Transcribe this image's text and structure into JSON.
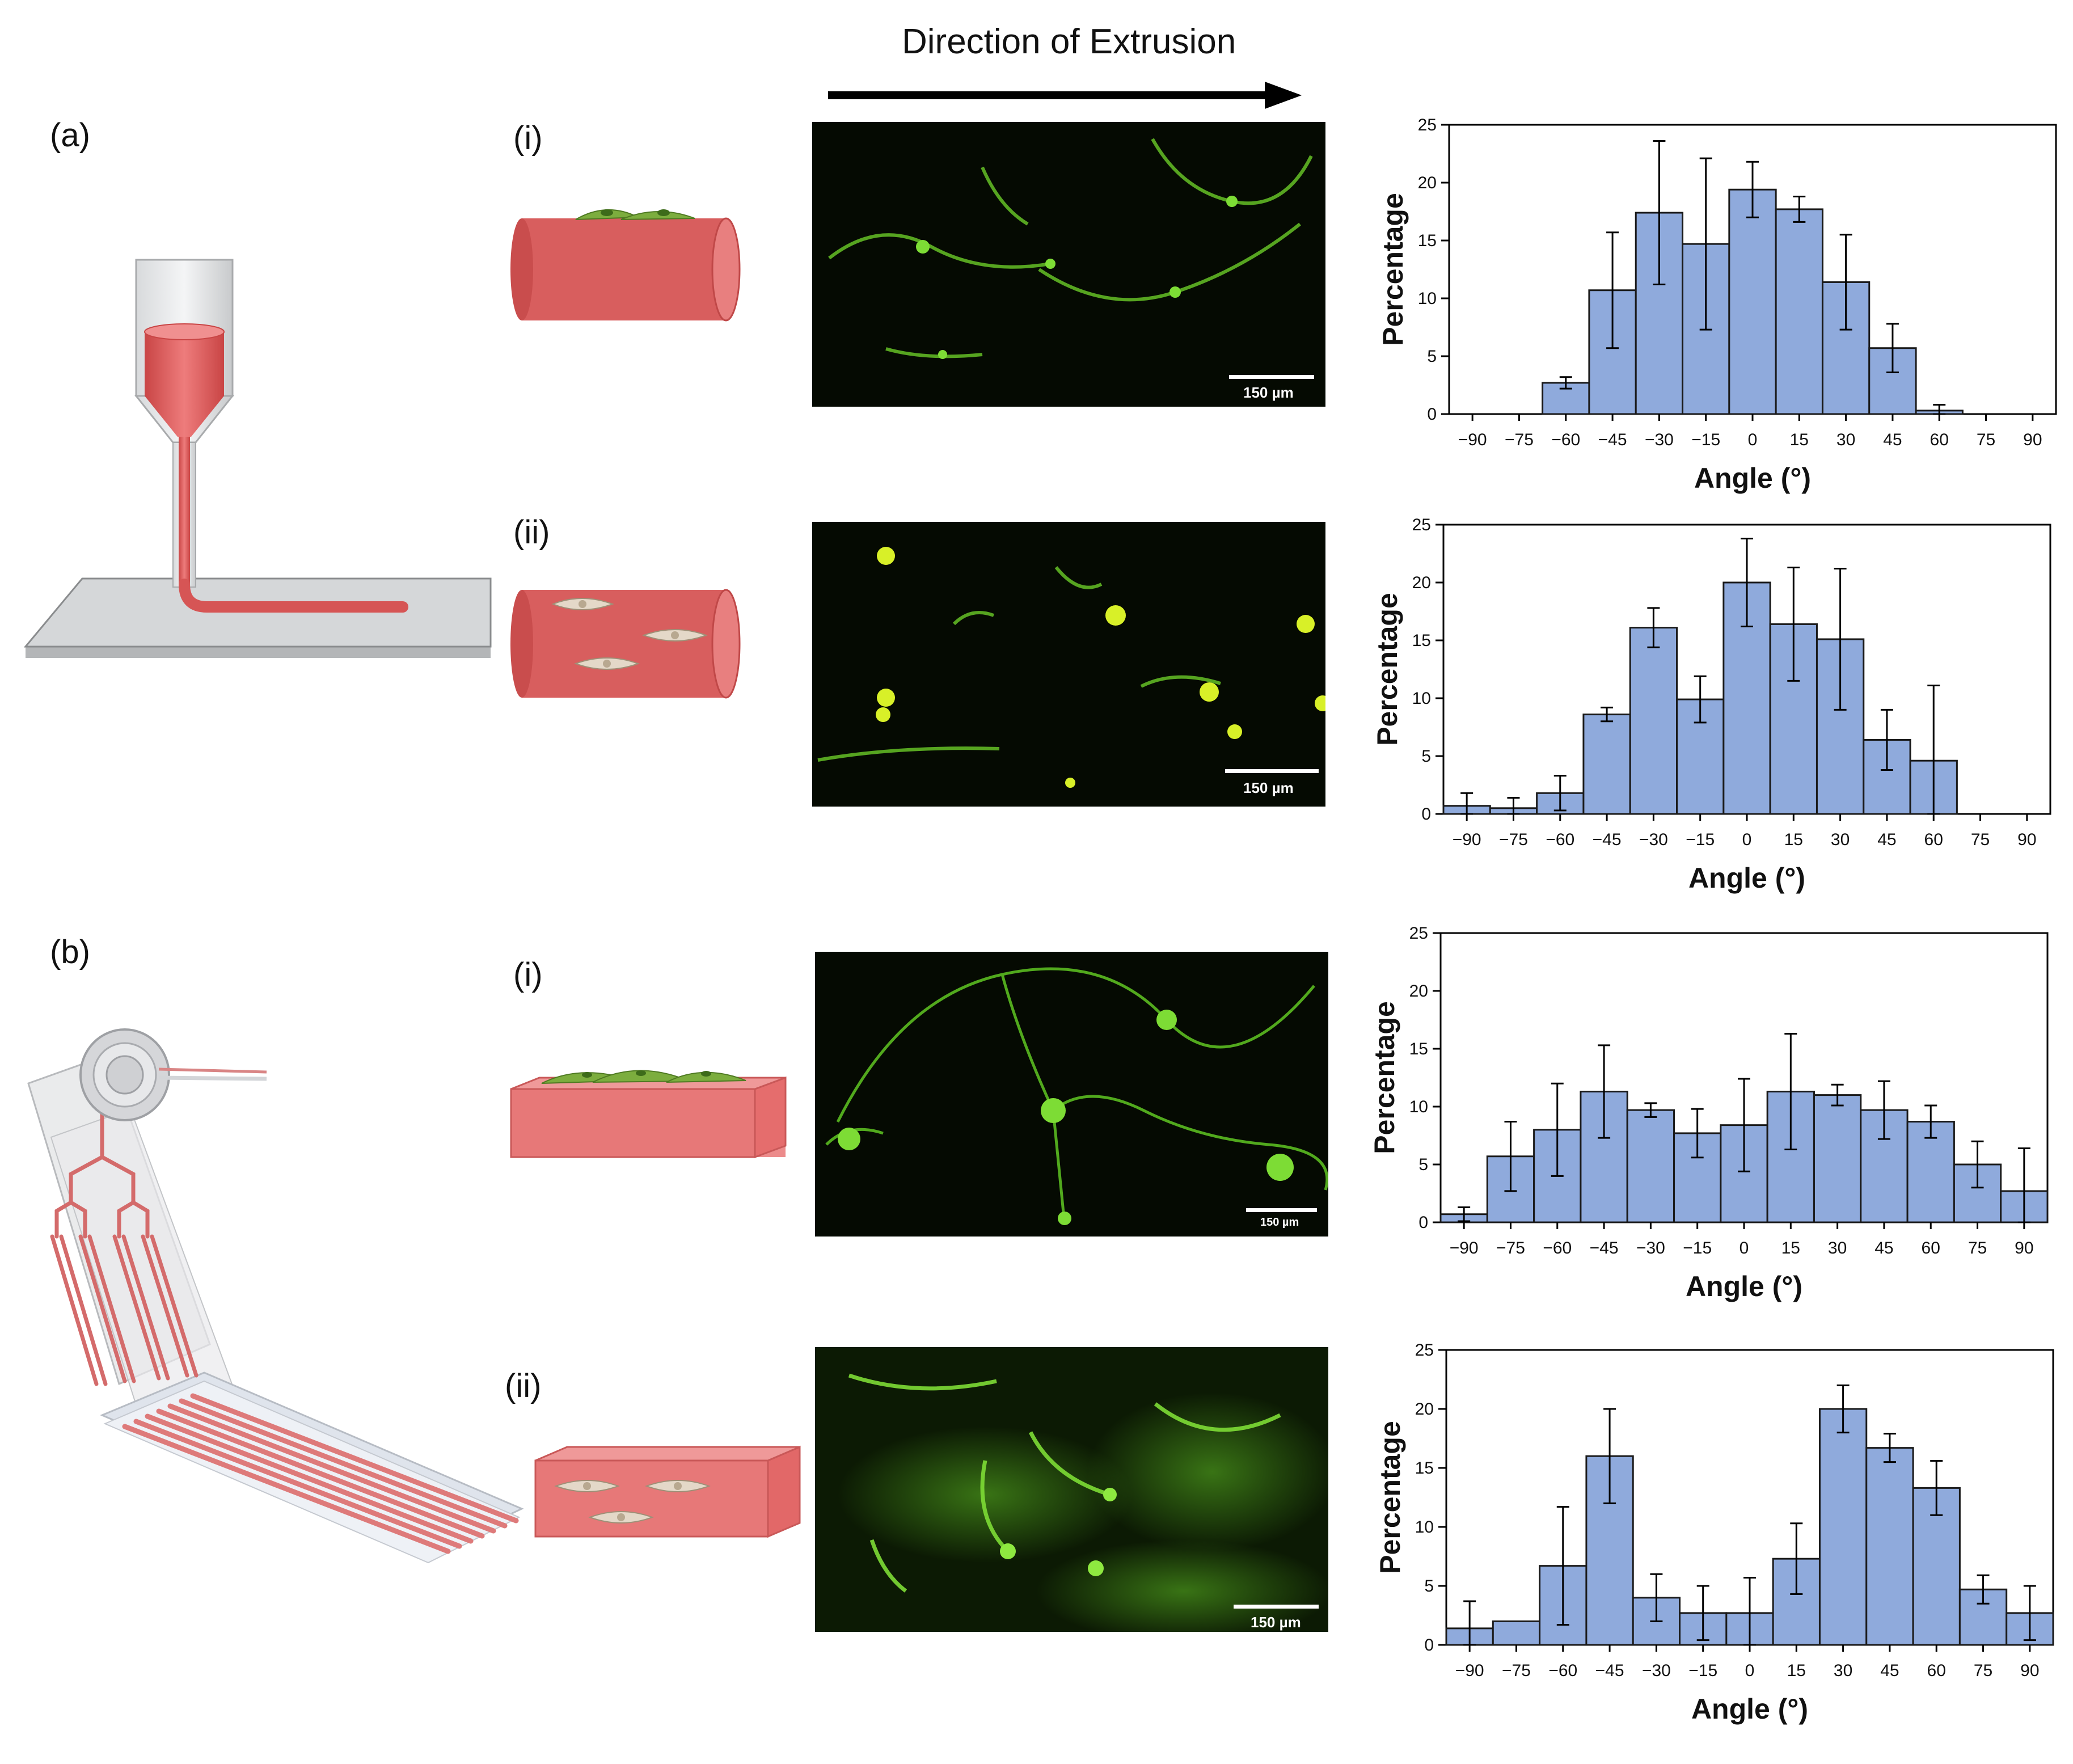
{
  "header": {
    "direction_label": "Direction of Extrusion"
  },
  "panel_labels": {
    "a": "(a)",
    "b": "(b)",
    "a_i": "(i)",
    "a_ii": "(ii)",
    "b_i": "(i)",
    "b_ii": "(ii)"
  },
  "scale_bars": {
    "a_i": "150 µm",
    "a_ii": "150 µm",
    "b_i": "150 µm",
    "b_ii": "150 µm"
  },
  "colors": {
    "bar_fill": "#8faadc",
    "bar_edge": "#1a1a1a",
    "gel": "#e06464",
    "cell": "#7cad3e",
    "fluor": "#6ddc2a"
  },
  "chart_data": [
    {
      "type": "bar",
      "panel": "a-i",
      "x": [
        -90,
        -75,
        -60,
        -45,
        -30,
        -15,
        0,
        15,
        30,
        45,
        60,
        75,
        90
      ],
      "values": [
        0,
        0,
        2.7,
        10.7,
        17.4,
        14.7,
        19.4,
        17.7,
        11.4,
        5.7,
        0.3,
        0,
        0
      ],
      "errors": [
        0,
        0,
        0.5,
        5.0,
        6.2,
        7.4,
        2.4,
        1.1,
        4.1,
        2.1,
        0.5,
        0,
        0
      ],
      "xlabel": "Angle (°)",
      "ylabel": "Percentage",
      "ylim": [
        0,
        25
      ],
      "yticks": [
        0,
        5,
        10,
        15,
        20,
        25
      ],
      "xticks": [
        -90,
        -75,
        -60,
        -45,
        -30,
        -15,
        0,
        15,
        30,
        45,
        60,
        75,
        90
      ]
    },
    {
      "type": "bar",
      "panel": "a-ii",
      "x": [
        -90,
        -75,
        -60,
        -45,
        -30,
        -15,
        0,
        15,
        30,
        45,
        60,
        75,
        90
      ],
      "values": [
        0.7,
        0.5,
        1.8,
        8.6,
        16.1,
        9.9,
        20.0,
        16.4,
        15.1,
        6.4,
        4.6,
        0,
        0
      ],
      "errors": [
        1.1,
        0.9,
        1.5,
        0.6,
        1.7,
        2.0,
        3.8,
        4.9,
        6.1,
        2.6,
        6.5,
        0,
        0
      ],
      "xlabel": "Angle (°)",
      "ylabel": "Percentage",
      "ylim": [
        0,
        25
      ],
      "yticks": [
        0,
        5,
        10,
        15,
        20,
        25
      ],
      "xticks": [
        -90,
        -75,
        -60,
        -45,
        -30,
        -15,
        0,
        15,
        30,
        45,
        60,
        75,
        90
      ]
    },
    {
      "type": "bar",
      "panel": "b-i",
      "x": [
        -90,
        -75,
        -60,
        -45,
        -30,
        -15,
        0,
        15,
        30,
        45,
        60,
        75,
        90
      ],
      "values": [
        0.7,
        5.7,
        8.0,
        11.3,
        9.7,
        7.7,
        8.4,
        11.3,
        11.0,
        9.7,
        8.7,
        5.0,
        2.7
      ],
      "errors": [
        0.6,
        3.0,
        4.0,
        4.0,
        0.6,
        2.1,
        4.0,
        5.0,
        0.9,
        2.5,
        1.4,
        2.0,
        3.7
      ],
      "xlabel": "Angle (°)",
      "ylabel": "Percentage",
      "ylim": [
        0,
        25
      ],
      "yticks": [
        0,
        5,
        10,
        15,
        20,
        25
      ],
      "xticks": [
        -90,
        -75,
        -60,
        -45,
        -30,
        -15,
        0,
        15,
        30,
        45,
        60,
        75,
        90
      ]
    },
    {
      "type": "bar",
      "panel": "b-ii",
      "x": [
        -90,
        -75,
        -60,
        -45,
        -30,
        -15,
        0,
        15,
        30,
        45,
        60,
        75,
        90
      ],
      "values": [
        1.4,
        2.0,
        6.7,
        16.0,
        4.0,
        2.7,
        2.7,
        7.3,
        20.0,
        16.7,
        13.3,
        4.7,
        2.7
      ],
      "errors": [
        2.3,
        0,
        5.0,
        4.0,
        2.0,
        2.3,
        3.0,
        3.0,
        2.0,
        1.2,
        2.3,
        1.2,
        2.3
      ],
      "xlabel": "Angle (°)",
      "ylabel": "Percentage",
      "ylim": [
        0,
        25
      ],
      "yticks": [
        0,
        5,
        10,
        15,
        20,
        25
      ],
      "xticks": [
        -90,
        -75,
        -60,
        -45,
        -30,
        -15,
        0,
        15,
        30,
        45,
        60,
        75,
        90
      ]
    }
  ]
}
